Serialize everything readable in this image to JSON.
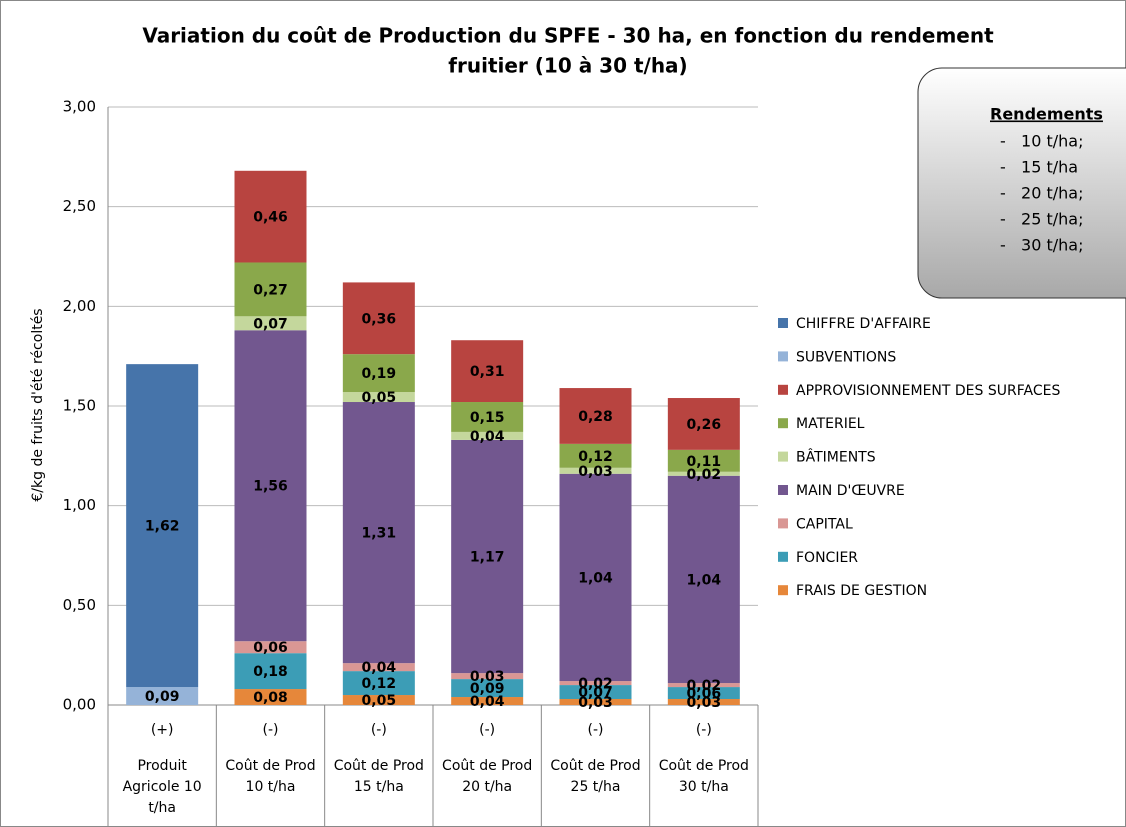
{
  "chart_data": {
    "type": "stacked_bar",
    "title": [
      "Variation du coût de Production du SPFE - 30 ha, en fonction du rendement",
      "fruitier (10 à 30 t/ha)"
    ],
    "y_axis_label": "€/kg de fruits d'été récoltés",
    "category_signs": [
      "(+)",
      "(-)",
      "(-)",
      "(-)",
      "(-)",
      "(-)"
    ],
    "categories": [
      "Produit Agricole 10 t/ha",
      "Coût de Prod 10 t/ha",
      "Coût de Prod 15 t/ha",
      "Coût de Prod 20 t/ha",
      "Coût de Prod 25 t/ha",
      "Coût de Prod 30 t/ha"
    ],
    "ylim": [
      0,
      3
    ],
    "yticks": [
      {
        "value": 0,
        "label": "0,00"
      },
      {
        "value": 0.5,
        "label": "0,50"
      },
      {
        "value": 1,
        "label": "1,00"
      },
      {
        "value": 1.5,
        "label": "1,50"
      },
      {
        "value": 2,
        "label": "2,00"
      },
      {
        "value": 2.5,
        "label": "2,50"
      },
      {
        "value": 3,
        "label": "3,00"
      }
    ],
    "grid": true,
    "legend": "right",
    "series": [
      {
        "name": "FRAIS DE GESTION",
        "color": "#e6873a",
        "values": [
          null,
          0.08,
          0.05,
          0.04,
          0.03,
          0.03
        ],
        "value_labels": [
          null,
          "0,08",
          "0,05",
          "0,04",
          "0,03",
          "0,03"
        ]
      },
      {
        "name": "FONCIER",
        "color": "#3c9db6",
        "values": [
          null,
          0.18,
          0.12,
          0.09,
          0.07,
          0.06
        ],
        "value_labels": [
          null,
          "0,18",
          "0,12",
          "0,09",
          "0,07",
          "0,06"
        ]
      },
      {
        "name": "CAPITAL",
        "color": "#d99794",
        "values": [
          null,
          0.06,
          0.04,
          0.03,
          0.02,
          0.02
        ],
        "value_labels": [
          null,
          "0,06",
          "0,04",
          "0,03",
          "0,02",
          "0,02"
        ]
      },
      {
        "name": "MAIN D'ŒUVRE",
        "color": "#72578f",
        "values": [
          null,
          1.56,
          1.31,
          1.17,
          1.04,
          1.04
        ],
        "value_labels": [
          null,
          "1,56",
          "1,31",
          "1,17",
          "1,04",
          "1,04"
        ]
      },
      {
        "name": "BÂTIMENTS",
        "color": "#c4d79c",
        "values": [
          null,
          0.07,
          0.05,
          0.04,
          0.03,
          0.02
        ],
        "value_labels": [
          null,
          "0,07",
          "0,05",
          "0,04",
          "0,03",
          "0,02"
        ]
      },
      {
        "name": "MATERIEL",
        "color": "#8aa84b",
        "values": [
          null,
          0.27,
          0.19,
          0.15,
          0.12,
          0.11
        ],
        "value_labels": [
          null,
          "0,27",
          "0,19",
          "0,15",
          "0,12",
          "0,11"
        ]
      },
      {
        "name": "APPROVISIONNEMENT DES SURFACES",
        "color": "#b84440",
        "values": [
          null,
          0.46,
          0.36,
          0.31,
          0.28,
          0.26
        ],
        "value_labels": [
          null,
          "0,46",
          "0,36",
          "0,31",
          "0,28",
          "0,26"
        ]
      },
      {
        "name": "SUBVENTIONS",
        "color": "#95b3d8",
        "values": [
          0.09,
          null,
          null,
          null,
          null,
          null
        ],
        "value_labels": [
          "0,09",
          null,
          null,
          null,
          null,
          null
        ]
      },
      {
        "name": "CHIFFRE D'AFFAIRE",
        "color": "#4674aa",
        "values": [
          1.62,
          null,
          null,
          null,
          null,
          null
        ],
        "value_labels": [
          "1,62",
          null,
          null,
          null,
          null,
          null
        ]
      }
    ],
    "annotation": {
      "title": "Rendements",
      "items": [
        "-   10 t/ha;",
        "-   15 t/ha",
        "-   20 t/ha;",
        "-   25 t/ha;",
        "-   30 t/ha;"
      ]
    }
  }
}
